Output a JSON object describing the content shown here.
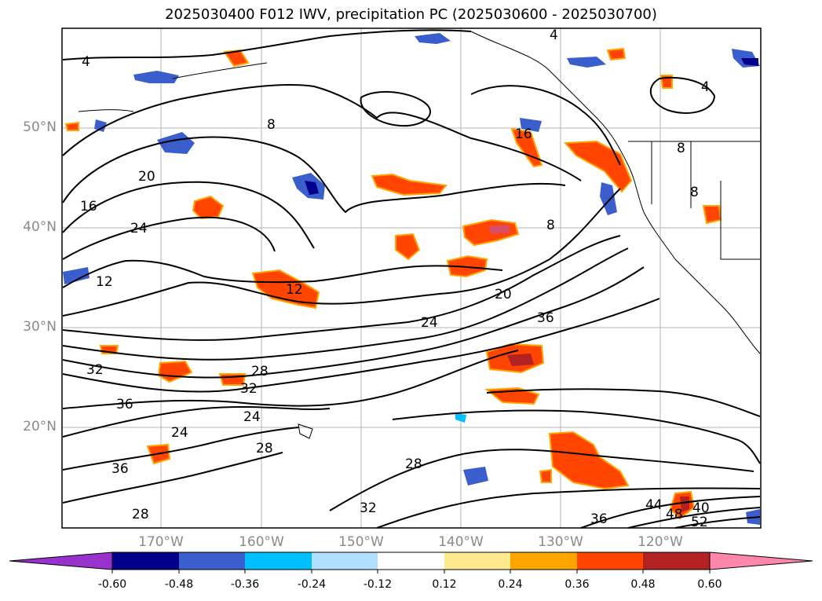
{
  "title": "2025030400 F012 IWV, precipitation PC (2025030600 - 2025030700)",
  "map": {
    "lat_labels": [
      "50°N",
      "40°N",
      "30°N",
      "20°N"
    ],
    "lon_labels": [
      "170°W",
      "160°W",
      "150°W",
      "140°W",
      "130°W",
      "120°W"
    ],
    "contour_labels": [
      "4",
      "4",
      "4",
      "8",
      "8",
      "8",
      "8",
      "12",
      "12",
      "16",
      "16",
      "20",
      "20",
      "24",
      "24",
      "24",
      "24",
      "28",
      "28",
      "28",
      "28",
      "32",
      "32",
      "32",
      "36",
      "36",
      "36",
      "36",
      "40",
      "44",
      "48",
      "52"
    ]
  },
  "colorbar": {
    "ticks": [
      "-0.60",
      "-0.48",
      "-0.36",
      "-0.24",
      "-0.12",
      "0.12",
      "0.24",
      "0.36",
      "0.48",
      "0.60"
    ],
    "colors": [
      "#9932cc",
      "#00008b",
      "#3a5fcd",
      "#00bfff",
      "#b0e0ff",
      "#ffffff",
      "#ffe98f",
      "#ffa500",
      "#ff4500",
      "#b22222",
      "#ff88aa"
    ]
  }
}
